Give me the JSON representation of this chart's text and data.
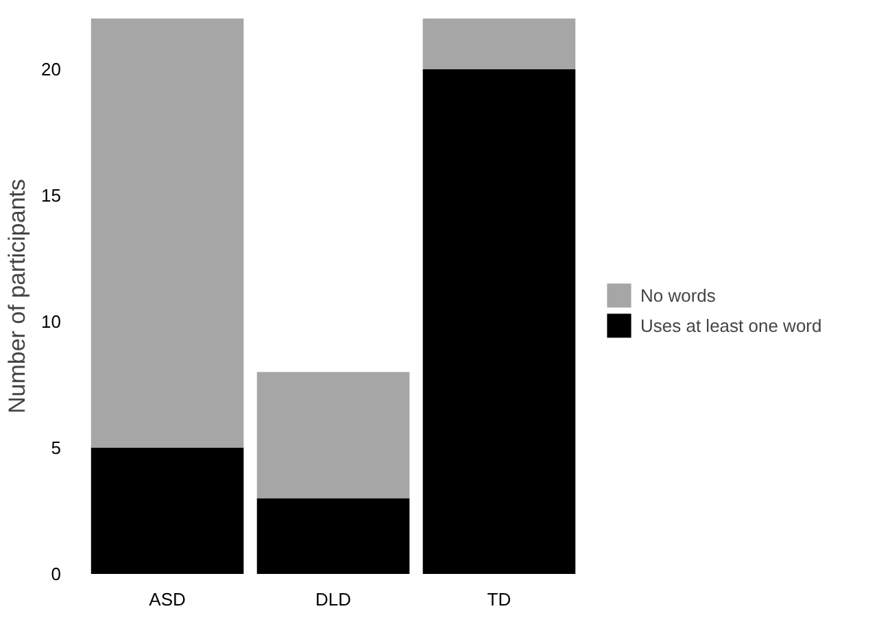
{
  "chart_data": {
    "type": "bar",
    "ylabel": "Number of participants",
    "categories": [
      "ASD",
      "DLD",
      "TD"
    ],
    "stacked": true,
    "series": [
      {
        "name": "Uses at least one word",
        "color": "#000000",
        "values": [
          5,
          3,
          20
        ]
      },
      {
        "name": "No words",
        "color": "#a6a6a6",
        "values": [
          17,
          5,
          2
        ]
      }
    ],
    "ylim": [
      0,
      22
    ],
    "yticks": [
      0,
      5,
      10,
      15,
      20
    ],
    "grid": false,
    "legend": "right"
  }
}
